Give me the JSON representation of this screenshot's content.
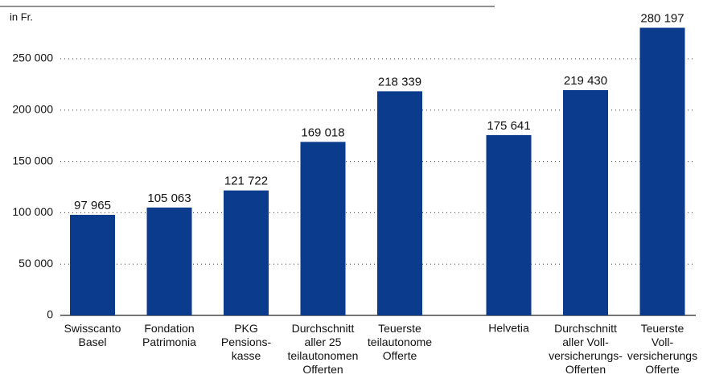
{
  "chart_data": {
    "type": "bar",
    "y_label": "in Fr.",
    "categories": [
      "Swisscanto\nBasel",
      "Fondation\nPatrimonia",
      "PKG\nPensions-\nkasse",
      "Durchschnitt\naller 25\nteilautonomen\nOfferten",
      "Teuerste\nteilautonome\nOfferte",
      "Helvetia",
      "Durchschnitt\naller Voll-\nversicherungs-\nOfferten",
      "Teuerste\nVoll-\nversicherungs\nOfferte"
    ],
    "values": [
      97965,
      105063,
      121722,
      169018,
      218339,
      175641,
      219430,
      280197
    ],
    "value_labels": [
      "97 965",
      "105 063",
      "121 722",
      "169 018",
      "218 339",
      "175 641",
      "219 430",
      "280 197"
    ],
    "color": "#0b3b8c",
    "ylim": [
      0,
      280197
    ],
    "yticks": [
      0,
      {
        "value": 50000,
        "label": "50 000"
      },
      {
        "value": 100000,
        "label": "100 000"
      },
      {
        "value": 150000,
        "label": "150 000"
      },
      {
        "value": 200000,
        "label": "200 000"
      },
      {
        "value": 250000,
        "label": "250 000"
      }
    ],
    "grid": true
  }
}
